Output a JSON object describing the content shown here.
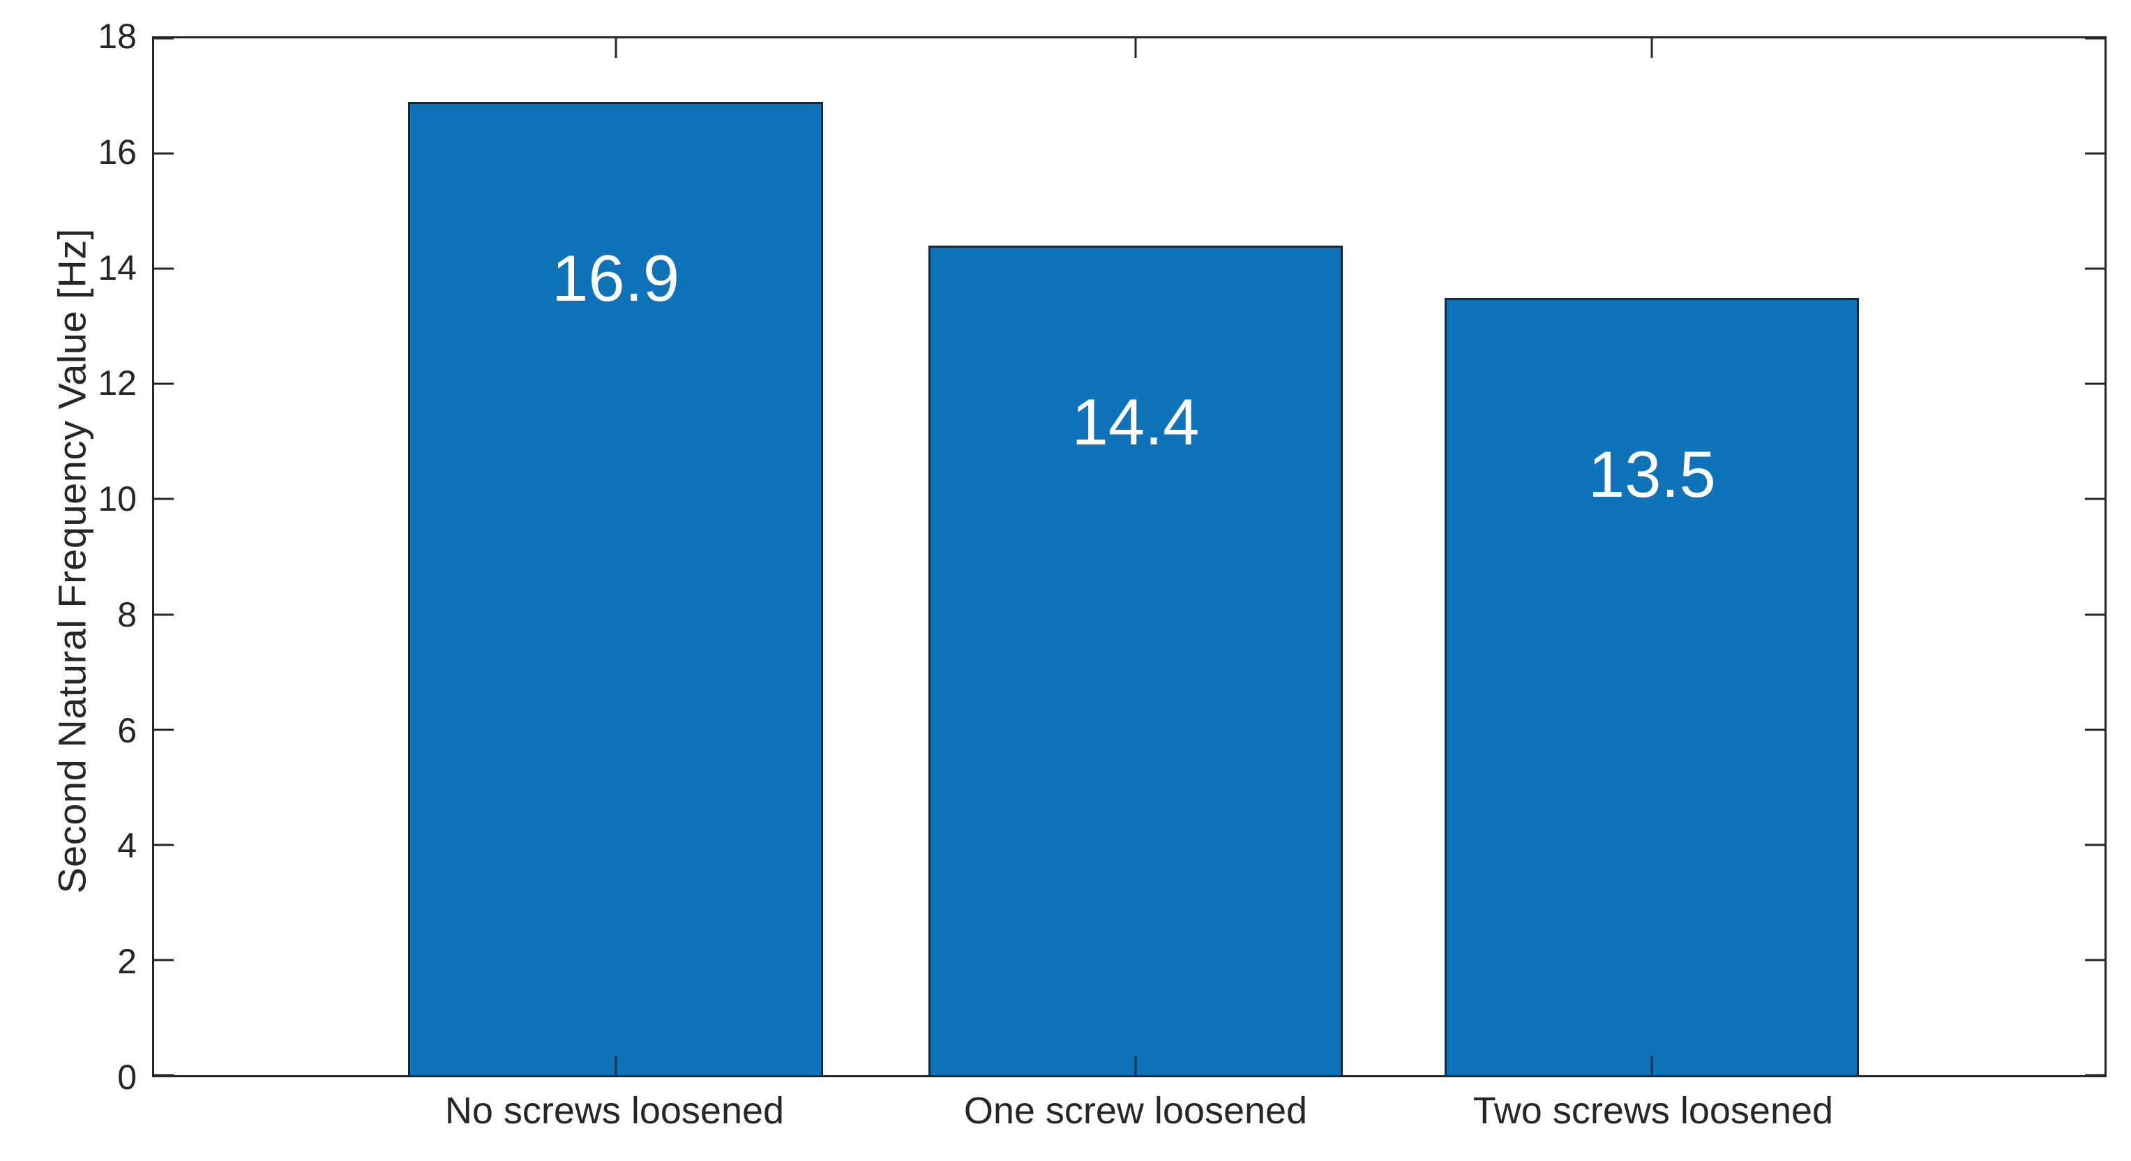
{
  "chart_data": {
    "type": "bar",
    "title": "",
    "xlabel": "",
    "ylabel": "Second Natural Frequency Value [Hz]",
    "categories": [
      "No screws loosened",
      "One screw loosened",
      "Two screws loosened"
    ],
    "values": [
      16.9,
      14.4,
      13.5
    ],
    "bar_labels": [
      "16.9",
      "14.4",
      "13.5"
    ],
    "ylim": [
      0,
      18
    ],
    "yticks": [
      0,
      2,
      4,
      6,
      8,
      10,
      12,
      14,
      16,
      18
    ],
    "grid": false,
    "box": true,
    "tick_direction": "in",
    "colors": {
      "bar_fill": "#0e73b9",
      "bar_edge": "#12283f",
      "axis": "#262626",
      "tick_label": "#262626",
      "bar_label": "#ffffff",
      "background": "#ffffff"
    }
  }
}
